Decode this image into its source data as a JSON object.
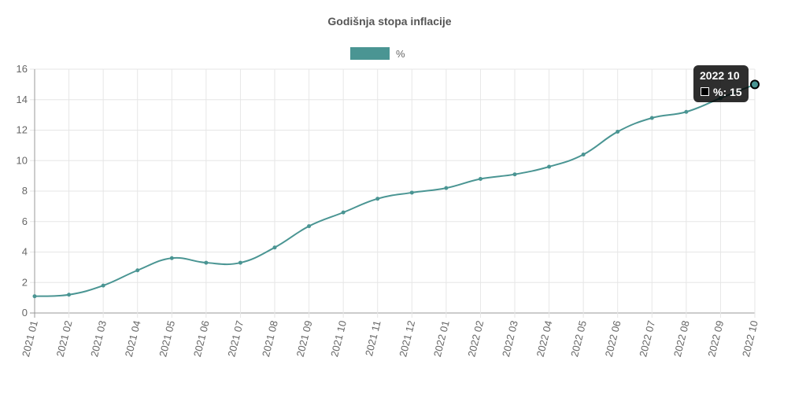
{
  "colors": {
    "series": "#4a9593",
    "grid": "#e6e6e6",
    "axis": "#999999",
    "text": "#666666"
  },
  "chart_data": {
    "type": "line",
    "title": "Godišnja stopa inflacije",
    "legend": {
      "position": "top",
      "entries": [
        "%"
      ]
    },
    "grid": true,
    "ylim": [
      0,
      16
    ],
    "yticks": [
      0,
      2,
      4,
      6,
      8,
      10,
      12,
      14,
      16
    ],
    "x": [
      "2021 01",
      "2021 02",
      "2021 03",
      "2021 04",
      "2021 05",
      "2021 06",
      "2021 07",
      "2021 08",
      "2021 09",
      "2021 10",
      "2021 11",
      "2021 12",
      "2022 01",
      "2022 02",
      "2022 03",
      "2022 04",
      "2022 05",
      "2022 06",
      "2022 07",
      "2022 08",
      "2022 09",
      "2022 10"
    ],
    "series": [
      {
        "name": "%",
        "values": [
          1.1,
          1.2,
          1.8,
          2.8,
          3.6,
          3.3,
          3.3,
          4.3,
          5.7,
          6.6,
          7.5,
          7.9,
          8.2,
          8.8,
          9.1,
          9.6,
          10.4,
          11.9,
          12.8,
          13.2,
          14.1,
          15.0
        ]
      }
    ]
  },
  "tooltip": {
    "title": "2022 10",
    "label": "%: 15",
    "index": 21
  }
}
